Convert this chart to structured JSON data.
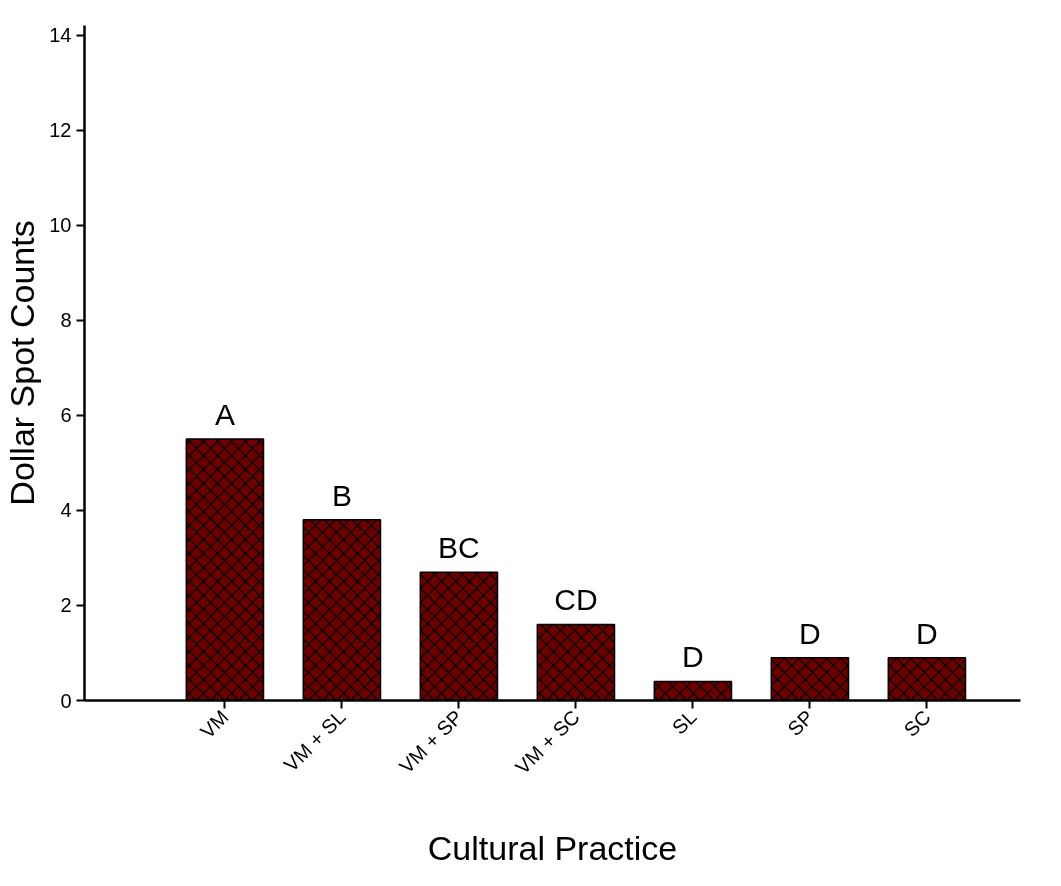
{
  "chart_data": {
    "type": "bar",
    "xlabel": "Cultural Practice",
    "ylabel": "Dollar Spot Counts",
    "categories": [
      "VM",
      "VM + SL",
      "VM + SP",
      "VM + SC",
      "SL",
      "SP",
      "SC"
    ],
    "values": [
      5.5,
      3.8,
      2.7,
      1.6,
      0.4,
      0.9,
      0.9
    ],
    "color": "#6b0000",
    "ylim": [
      0,
      14.2
    ],
    "yticks": [
      0,
      2,
      4,
      6,
      8,
      10,
      12,
      14
    ],
    "grid": false,
    "annotations": [
      {
        "text": "A",
        "x": "VM",
        "y": 5.5
      },
      {
        "text": "B",
        "x": "VM + SL",
        "y": 3.8
      },
      {
        "text": "BC",
        "x": "VM + SP",
        "y": 2.7
      },
      {
        "text": "CD",
        "x": "VM + SC",
        "y": 1.6
      },
      {
        "text": "D",
        "x": "SL",
        "y": 0.4
      },
      {
        "text": "D",
        "x": "SP",
        "y": 0.9
      },
      {
        "text": "D",
        "x": "SC",
        "y": 0.9
      }
    ]
  }
}
